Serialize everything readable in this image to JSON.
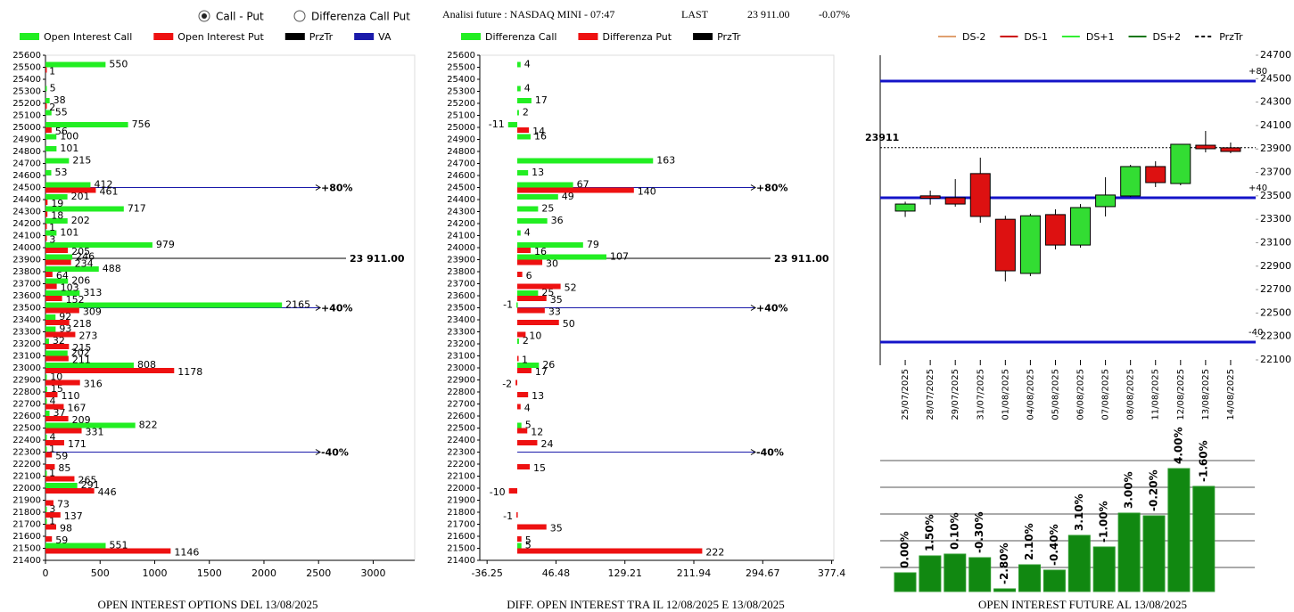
{
  "header": {
    "options": [
      "Call - Put",
      "Differenza Call Put"
    ],
    "selected": 0,
    "instrument": "Analisi future : NASDAQ MINI - 07:47",
    "last_label": "LAST",
    "last": "23 911.00",
    "change": "-0.07%"
  },
  "chart_data": [
    {
      "type": "hbar",
      "title": "OPEN INTEREST OPTIONS DEL 13/08/2025",
      "categories": [
        25600,
        25500,
        25400,
        25300,
        25200,
        25100,
        25000,
        24900,
        24800,
        24700,
        24600,
        24500,
        24400,
        24300,
        24200,
        24100,
        24000,
        23900,
        23800,
        23700,
        23600,
        23500,
        23400,
        23300,
        23200,
        23100,
        23000,
        22900,
        22800,
        22700,
        22600,
        22500,
        22400,
        22300,
        22200,
        22100,
        22000,
        21900,
        21800,
        21700,
        21600,
        21500,
        21400
      ],
      "series": [
        {
          "name": "Open Interest Call",
          "color": "#22ee22",
          "values": [
            null,
            550,
            null,
            5,
            38,
            55,
            756,
            100,
            101,
            215,
            53,
            412,
            201,
            717,
            202,
            101,
            979,
            246,
            488,
            206,
            313,
            2165,
            92,
            93,
            32,
            202,
            808,
            10,
            15,
            4,
            37,
            822,
            4,
            1,
            null,
            1,
            291,
            null,
            3,
            1,
            null,
            551,
            null
          ]
        },
        {
          "name": "Open Interest Put",
          "color": "#ee1111",
          "values": [
            null,
            1,
            null,
            null,
            2,
            null,
            56,
            null,
            null,
            null,
            null,
            461,
            19,
            18,
            1,
            3,
            205,
            234,
            64,
            103,
            152,
            309,
            218,
            273,
            215,
            211,
            1178,
            316,
            110,
            167,
            209,
            331,
            171,
            59,
            85,
            265,
            446,
            73,
            137,
            98,
            59,
            1146,
            null
          ]
        }
      ],
      "xlim": [
        0,
        3380
      ],
      "xticks": [
        0,
        500,
        1000,
        1500,
        2000,
        2500,
        3000
      ],
      "ylim": [
        21400,
        25600
      ],
      "price_line": {
        "name": "PrzTr",
        "color": "#000000",
        "value": 23911,
        "label": "23 911.00"
      },
      "va_lines": {
        "name": "VA",
        "color": "#1a1aaa",
        "lines": [
          {
            "value": 24500,
            "label": "+80%"
          },
          {
            "value": 23500,
            "label": "+40%"
          },
          {
            "value": 22300,
            "label": "-40%"
          }
        ]
      }
    },
    {
      "type": "hbar",
      "title": "DIFF. OPEN INTEREST TRA IL 12/08/2025 E 13/08/2025",
      "categories": [
        25600,
        25500,
        25400,
        25300,
        25200,
        25100,
        25000,
        24900,
        24800,
        24700,
        24600,
        24500,
        24400,
        24300,
        24200,
        24100,
        24000,
        23900,
        23800,
        23700,
        23600,
        23500,
        23400,
        23300,
        23200,
        23100,
        23000,
        22900,
        22800,
        22700,
        22600,
        22500,
        22400,
        22300,
        22200,
        22100,
        22000,
        21900,
        21800,
        21700,
        21600,
        21500,
        21400
      ],
      "series": [
        {
          "name": "Differenza Call",
          "color": "#22ee22",
          "values": [
            null,
            4,
            null,
            4,
            17,
            2,
            -11,
            16,
            null,
            163,
            13,
            67,
            49,
            25,
            36,
            4,
            79,
            107,
            null,
            null,
            25,
            -1,
            null,
            null,
            2,
            null,
            26,
            null,
            null,
            null,
            null,
            5,
            null,
            null,
            null,
            null,
            null,
            null,
            null,
            null,
            null,
            5,
            null
          ]
        },
        {
          "name": "Differenza Put",
          "color": "#ee1111",
          "values": [
            null,
            null,
            null,
            null,
            null,
            null,
            14,
            null,
            null,
            null,
            null,
            140,
            null,
            null,
            null,
            null,
            16,
            30,
            6,
            52,
            35,
            33,
            50,
            10,
            null,
            1,
            17,
            -2,
            13,
            4,
            null,
            12,
            24,
            null,
            15,
            null,
            -10,
            null,
            -1,
            35,
            5,
            222,
            null
          ]
        }
      ],
      "xlim": [
        -45,
        380
      ],
      "xticks": [
        -36.25,
        46.48,
        129.21,
        211.94,
        294.67,
        377.4
      ],
      "ylim": [
        21400,
        25600
      ],
      "price_line": {
        "name": "PrzTr",
        "color": "#000000",
        "value": 23911,
        "label": "23 911.00"
      },
      "va_lines": {
        "color": "#1a1aaa",
        "lines": [
          {
            "value": 24500,
            "label": "+80%"
          },
          {
            "value": 23500,
            "label": "+40%"
          },
          {
            "value": 22300,
            "label": "-40%"
          }
        ]
      }
    },
    {
      "type": "candlestick",
      "x": [
        "25/07/2025",
        "28/07/2025",
        "29/07/2025",
        "31/07/2025",
        "01/08/2025",
        "04/08/2025",
        "05/08/2025",
        "06/08/2025",
        "07/08/2025",
        "08/08/2025",
        "11/08/2025",
        "12/08/2025",
        "13/08/2025",
        "14/08/2025"
      ],
      "open": [
        23370,
        23500,
        23484,
        23690,
        23300,
        22838,
        23340,
        23080,
        23408,
        23499,
        23750,
        23605,
        23932,
        23910
      ],
      "high": [
        23450,
        23545,
        23643,
        23826,
        23330,
        23347,
        23385,
        23430,
        23659,
        23765,
        23795,
        23940,
        24054,
        23955
      ],
      "low": [
        23320,
        23425,
        23408,
        23270,
        22770,
        22815,
        23043,
        23058,
        23324,
        23490,
        23575,
        23590,
        23871,
        23864
      ],
      "close": [
        23430,
        23480,
        23430,
        23324,
        22860,
        23330,
        23080,
        23400,
        23507,
        23750,
        23613,
        23940,
        23902,
        23879
      ],
      "up_color": "#33dd33",
      "down_color": "#dd1111",
      "ylim": [
        22100,
        24700
      ],
      "yticks": [
        24700,
        24500,
        24300,
        24100,
        23900,
        23700,
        23500,
        23300,
        23100,
        22900,
        22700,
        22500,
        22300,
        22100
      ],
      "legend": [
        {
          "name": "DS-2",
          "color": "#e0a070"
        },
        {
          "name": "DS-1",
          "color": "#cc0000"
        },
        {
          "name": "DS+1",
          "color": "#33ee33"
        },
        {
          "name": "DS+2",
          "color": "#117711"
        },
        {
          "name": "PrzTr",
          "color": "#000000",
          "dash": true
        }
      ],
      "price_line": {
        "value": 23911,
        "label": "23911"
      },
      "va_lines": {
        "color": "#1414c8",
        "lines": [
          {
            "value": 24480,
            "label": "+80"
          },
          {
            "value": 23484,
            "label": "+40"
          },
          {
            "value": 22252,
            "label": "-40"
          }
        ]
      }
    },
    {
      "type": "bar",
      "title": "OPEN INTEREST FUTURE AL 13/08/2025",
      "values": [
        21,
        40,
        42,
        38,
        3,
        30,
        24,
        63,
        50,
        88,
        85,
        138,
        118
      ],
      "ylim": [
        0,
        150
      ],
      "color": "#118811",
      "labels": [
        "0.00%",
        "1.50%",
        "0.10%",
        "-0.30%",
        "-2.80%",
        "2.10%",
        "-0.40%",
        "3.10%",
        "-1.00%",
        "3.00%",
        "-0.20%",
        "4.00%",
        "-1.60%"
      ]
    }
  ]
}
